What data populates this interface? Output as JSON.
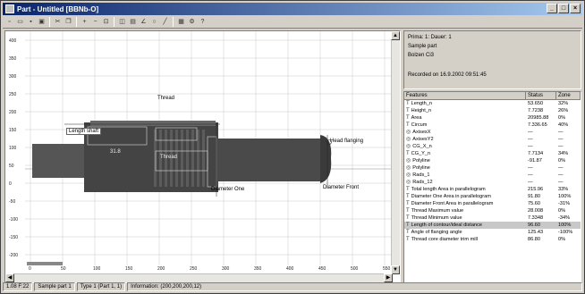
{
  "window": {
    "title": "Part - Untitled [BBNb-O]",
    "buttons": [
      "_",
      "□",
      "×"
    ]
  },
  "toolbar": {
    "icons": [
      "new-icon",
      "open-icon",
      "save-icon",
      "print-icon",
      "sep",
      "cut-icon",
      "copy-icon",
      "sep",
      "zoom-in-icon",
      "zoom-out-icon",
      "fit-icon",
      "sep",
      "measure-icon",
      "ruler-icon",
      "angle-icon",
      "circle-icon",
      "line-icon",
      "sep",
      "grid-icon",
      "settings-icon",
      "help-icon"
    ],
    "glyphs": [
      "▫",
      "▭",
      "▪",
      "▣",
      "",
      "✂",
      "❐",
      "",
      "+",
      "−",
      "⊡",
      "",
      "◫",
      "▤",
      "∠",
      "○",
      "╱",
      "",
      "▦",
      "⚙",
      "?"
    ]
  },
  "canvas": {
    "labels": {
      "thread_top": "Thread",
      "length_label": "Length shaft",
      "thread_mid": "Thread",
      "side_label": "Head flanging",
      "diameter_one": "Diameter One",
      "diameter_front": "Diameter Front",
      "inner_value": "31.8"
    },
    "y_ticks": [
      "400",
      "350",
      "300",
      "250",
      "200",
      "150",
      "100",
      "50",
      "0",
      "-50",
      "-100",
      "-150",
      "-200"
    ],
    "x_ticks": [
      "0",
      "50",
      "100",
      "150",
      "200",
      "250",
      "300",
      "350",
      "400",
      "450",
      "500",
      "550"
    ]
  },
  "info": {
    "line1": "Prima: 1: Dauer: 1",
    "line2": "Sample part",
    "line3": "Bolzen Ci3",
    "line4": "Recorded on 16.9.2002 09:51:45"
  },
  "grid": {
    "headers": [
      "Features",
      "Status",
      "Zone"
    ],
    "rows": [
      {
        "name": "Length_n",
        "value": "53.650",
        "pct": "32%",
        "icon": "T"
      },
      {
        "name": "Height_n",
        "value": "7.7238",
        "pct": "26%",
        "icon": "T"
      },
      {
        "name": "Area",
        "value": "20985.88",
        "pct": "0%",
        "icon": "T"
      },
      {
        "name": "Circum",
        "value": "7.336.65",
        "pct": "40%",
        "icon": "T"
      },
      {
        "name": "AxisesX",
        "value": "—",
        "pct": "—",
        "icon": "◎"
      },
      {
        "name": "AxisesY2",
        "value": "—",
        "pct": "—",
        "icon": "◎"
      },
      {
        "name": "CG_X_n",
        "value": "—",
        "pct": "—",
        "icon": "◎"
      },
      {
        "name": "CG_Y_n",
        "value": "7.7134",
        "pct": "34%",
        "icon": "T"
      },
      {
        "name": "Polyline",
        "value": "-91.87",
        "pct": "0%",
        "icon": "◎"
      },
      {
        "name": "Polyline",
        "value": "—",
        "pct": "—",
        "icon": "◎"
      },
      {
        "name": "Rads_1",
        "value": "—",
        "pct": "—",
        "icon": "◎"
      },
      {
        "name": "Rads_12",
        "value": "—",
        "pct": "—",
        "icon": "◎"
      },
      {
        "name": "Total length Area in parallelogram",
        "value": "215.96",
        "pct": "33%",
        "icon": "T"
      },
      {
        "name": "Diameter One Area in parallelogram",
        "value": "91.80",
        "pct": "100%",
        "icon": "T"
      },
      {
        "name": "Diameter Front Area in parallelogram",
        "value": "75.60",
        "pct": "-31%",
        "icon": "T"
      },
      {
        "name": "Thread Maximum value",
        "value": "28.008",
        "pct": "0%",
        "icon": "T"
      },
      {
        "name": "Thread Minimum value",
        "value": "7.3348",
        "pct": "-34%",
        "icon": "T"
      },
      {
        "name": "Length of contour/ideal distance",
        "value": "96.60",
        "pct": "100%",
        "icon": "T",
        "selected": true
      },
      {
        "name": "Angle of flanging angle",
        "value": "125.43",
        "pct": "-100%",
        "icon": "T"
      },
      {
        "name": "Thread core diameter trim mill",
        "value": "86.80",
        "pct": "0%",
        "icon": "T"
      }
    ]
  },
  "status": {
    "s1": "1.08 F:22",
    "s2": "Sample part 1",
    "s3": "Type 1 (Part 1, 1)",
    "s4": "Information: (200,200,200,12)"
  }
}
